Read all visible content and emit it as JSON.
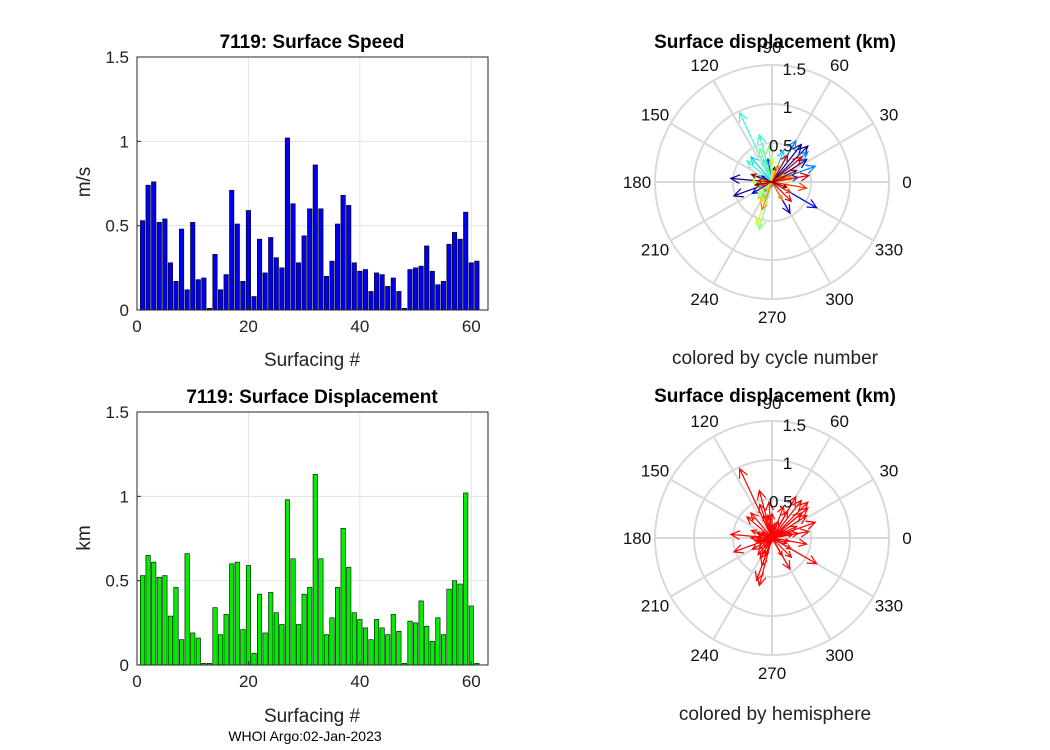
{
  "figure": {
    "footer": "WHOI Argo:02-Jan-2023"
  },
  "chart_data": [
    {
      "type": "bar",
      "id": "speed",
      "title": "7119: Surface Speed",
      "xlabel": "Surfacing #",
      "ylabel": "m/s",
      "xlim": [
        0,
        63
      ],
      "ylim": [
        0,
        1.5
      ],
      "xticks": [
        0,
        20,
        40,
        60
      ],
      "yticks": [
        0,
        0.5,
        1,
        1.5
      ],
      "xtick_labels": [
        "0",
        "20",
        "40",
        "60"
      ],
      "ytick_labels": [
        "0",
        "0.5",
        "1",
        "1.5"
      ],
      "grid": true,
      "bar_color": "#0000ee",
      "x": [
        1,
        2,
        3,
        4,
        5,
        6,
        7,
        8,
        9,
        10,
        11,
        12,
        13,
        14,
        15,
        16,
        17,
        18,
        19,
        20,
        21,
        22,
        23,
        24,
        25,
        26,
        27,
        28,
        29,
        30,
        31,
        32,
        33,
        34,
        35,
        36,
        37,
        38,
        39,
        40,
        41,
        42,
        43,
        44,
        45,
        46,
        47,
        48,
        49,
        50,
        51,
        52,
        53,
        54,
        55,
        56,
        57,
        58,
        59,
        60,
        61
      ],
      "values": [
        0.53,
        0.74,
        0.76,
        0.52,
        0.54,
        0.28,
        0.17,
        0.48,
        0.12,
        0.52,
        0.18,
        0.19,
        0.01,
        0.33,
        0.12,
        0.21,
        0.71,
        0.51,
        0.17,
        0.59,
        0.08,
        0.42,
        0.22,
        0.43,
        0.31,
        0.25,
        1.02,
        0.63,
        0.28,
        0.44,
        0.6,
        0.86,
        0.6,
        0.2,
        0.29,
        0.51,
        0.68,
        0.62,
        0.28,
        0.23,
        0.24,
        0.11,
        0.22,
        0.21,
        0.14,
        0.19,
        0.11,
        0.01,
        0.24,
        0.25,
        0.26,
        0.38,
        0.23,
        0.15,
        0.17,
        0.39,
        0.46,
        0.42,
        0.58,
        0.28,
        0.29
      ]
    },
    {
      "type": "bar",
      "id": "displacement",
      "title": "7119: Surface Displacement",
      "xlabel": "Surfacing #",
      "ylabel": "km",
      "xlim": [
        0,
        63
      ],
      "ylim": [
        0,
        1.5
      ],
      "xticks": [
        0,
        20,
        40,
        60
      ],
      "yticks": [
        0,
        0.5,
        1,
        1.5
      ],
      "xtick_labels": [
        "0",
        "20",
        "40",
        "60"
      ],
      "ytick_labels": [
        "0",
        "0.5",
        "1",
        "1.5"
      ],
      "grid": true,
      "bar_color": "#00ee00",
      "x": [
        1,
        2,
        3,
        4,
        5,
        6,
        7,
        8,
        9,
        10,
        11,
        12,
        13,
        14,
        15,
        16,
        17,
        18,
        19,
        20,
        21,
        22,
        23,
        24,
        25,
        26,
        27,
        28,
        29,
        30,
        31,
        32,
        33,
        34,
        35,
        36,
        37,
        38,
        39,
        40,
        41,
        42,
        43,
        44,
        45,
        46,
        47,
        48,
        49,
        50,
        51,
        52,
        53,
        54,
        55,
        56,
        57,
        58,
        59,
        60,
        61
      ],
      "values": [
        0.53,
        0.65,
        0.61,
        0.52,
        0.53,
        0.29,
        0.46,
        0.15,
        0.66,
        0.19,
        0.16,
        0.01,
        0.01,
        0.34,
        0.18,
        0.3,
        0.6,
        0.61,
        0.21,
        0.59,
        0.07,
        0.42,
        0.19,
        0.43,
        0.31,
        0.24,
        0.98,
        0.63,
        0.24,
        0.42,
        0.46,
        1.13,
        0.63,
        0.18,
        0.28,
        0.46,
        0.81,
        0.58,
        0.31,
        0.27,
        0.22,
        0.15,
        0.27,
        0.22,
        0.18,
        0.3,
        0.2,
        0.01,
        0.26,
        0.25,
        0.38,
        0.23,
        0.14,
        0.28,
        0.18,
        0.45,
        0.5,
        0.48,
        1.02,
        0.35,
        0.01
      ]
    },
    {
      "type": "polar-quiver",
      "id": "polar-cycle",
      "title": "Surface displacement (km)",
      "caption": "colored by cycle number",
      "rlim": [
        0,
        1.5
      ],
      "rticks": [
        0.5,
        1,
        1.5
      ],
      "rtick_labels": [
        "0.5",
        "1",
        "1.5"
      ],
      "theta_ticks": [
        0,
        30,
        60,
        90,
        120,
        150,
        180,
        210,
        240,
        270,
        300,
        330
      ],
      "theta_tick_labels": [
        "0",
        "30",
        "60",
        "90",
        "120",
        "150",
        "180",
        "210",
        "240",
        "270",
        "300",
        "330"
      ],
      "color_by": "cycle",
      "colors": [
        "#00008f",
        "#0000df",
        "#0030ff",
        "#0080ff",
        "#00d0ff",
        "#30ffcf",
        "#80ff80",
        "#cfff30",
        "#ffd000",
        "#ff8000",
        "#ff3000",
        "#df0000",
        "#8f0000"
      ],
      "vectors_deg_km": [
        [
          33,
          0.53
        ],
        [
          45,
          0.65
        ],
        [
          52,
          0.61
        ],
        [
          200,
          0.52
        ],
        [
          175,
          0.53
        ],
        [
          210,
          0.29
        ],
        [
          300,
          0.46
        ],
        [
          150,
          0.15
        ],
        [
          330,
          0.66
        ],
        [
          80,
          0.19
        ],
        [
          230,
          0.16
        ],
        [
          10,
          0.34
        ],
        [
          190,
          0.18
        ],
        [
          100,
          0.3
        ],
        [
          40,
          0.6
        ],
        [
          60,
          0.61
        ],
        [
          160,
          0.21
        ],
        [
          20,
          0.59
        ],
        [
          260,
          0.07
        ],
        [
          130,
          0.42
        ],
        [
          200,
          0.19
        ],
        [
          70,
          0.43
        ],
        [
          110,
          0.31
        ],
        [
          240,
          0.24
        ],
        [
          115,
          0.98
        ],
        [
          105,
          0.63
        ],
        [
          250,
          0.24
        ],
        [
          140,
          0.42
        ],
        [
          95,
          0.46
        ],
        [
          255,
          0.63
        ],
        [
          165,
          0.18
        ],
        [
          230,
          0.28
        ],
        [
          110,
          0.46
        ],
        [
          250,
          0.58
        ],
        [
          90,
          0.31
        ],
        [
          180,
          0.27
        ],
        [
          220,
          0.22
        ],
        [
          80,
          0.15
        ],
        [
          10,
          0.27
        ],
        [
          350,
          0.22
        ],
        [
          30,
          0.18
        ],
        [
          240,
          0.3
        ],
        [
          195,
          0.2
        ],
        [
          300,
          0.26
        ],
        [
          15,
          0.25
        ],
        [
          250,
          0.38
        ],
        [
          70,
          0.23
        ],
        [
          200,
          0.14
        ],
        [
          330,
          0.28
        ],
        [
          20,
          0.18
        ],
        [
          350,
          0.45
        ],
        [
          40,
          0.5
        ],
        [
          10,
          0.48
        ],
        [
          315,
          0.35
        ],
        [
          175,
          0.18
        ],
        [
          60,
          0.4
        ],
        [
          25,
          0.35
        ],
        [
          190,
          0.22
        ],
        [
          340,
          0.2
        ],
        [
          160,
          0.28
        ]
      ]
    },
    {
      "type": "polar-quiver",
      "id": "polar-hemisphere",
      "title": "Surface displacement (km)",
      "caption": "colored by hemisphere",
      "rlim": [
        0,
        1.5
      ],
      "rticks": [
        0.5,
        1,
        1.5
      ],
      "rtick_labels": [
        "0.5",
        "1",
        "1.5"
      ],
      "theta_ticks": [
        0,
        30,
        60,
        90,
        120,
        150,
        180,
        210,
        240,
        270,
        300,
        330
      ],
      "theta_tick_labels": [
        "0",
        "30",
        "60",
        "90",
        "120",
        "150",
        "180",
        "210",
        "240",
        "270",
        "300",
        "330"
      ],
      "color_by": "hemisphere",
      "colors": [
        "#ff0000"
      ],
      "vectors_deg_km": [
        [
          33,
          0.53
        ],
        [
          45,
          0.65
        ],
        [
          52,
          0.61
        ],
        [
          200,
          0.52
        ],
        [
          175,
          0.53
        ],
        [
          210,
          0.29
        ],
        [
          300,
          0.46
        ],
        [
          150,
          0.15
        ],
        [
          330,
          0.66
        ],
        [
          80,
          0.19
        ],
        [
          230,
          0.16
        ],
        [
          10,
          0.34
        ],
        [
          190,
          0.18
        ],
        [
          100,
          0.3
        ],
        [
          40,
          0.6
        ],
        [
          60,
          0.61
        ],
        [
          160,
          0.21
        ],
        [
          20,
          0.59
        ],
        [
          260,
          0.07
        ],
        [
          130,
          0.42
        ],
        [
          200,
          0.19
        ],
        [
          70,
          0.43
        ],
        [
          110,
          0.31
        ],
        [
          240,
          0.24
        ],
        [
          115,
          0.98
        ],
        [
          105,
          0.63
        ],
        [
          250,
          0.24
        ],
        [
          140,
          0.42
        ],
        [
          95,
          0.46
        ],
        [
          255,
          0.63
        ],
        [
          165,
          0.18
        ],
        [
          230,
          0.28
        ],
        [
          110,
          0.46
        ],
        [
          250,
          0.58
        ],
        [
          90,
          0.31
        ],
        [
          180,
          0.27
        ],
        [
          220,
          0.22
        ],
        [
          80,
          0.15
        ],
        [
          10,
          0.27
        ],
        [
          350,
          0.22
        ],
        [
          30,
          0.18
        ],
        [
          240,
          0.3
        ],
        [
          195,
          0.2
        ],
        [
          300,
          0.26
        ],
        [
          15,
          0.25
        ],
        [
          250,
          0.38
        ],
        [
          70,
          0.23
        ],
        [
          200,
          0.14
        ],
        [
          330,
          0.28
        ],
        [
          20,
          0.18
        ],
        [
          350,
          0.45
        ],
        [
          40,
          0.5
        ],
        [
          10,
          0.48
        ],
        [
          315,
          0.35
        ],
        [
          175,
          0.18
        ],
        [
          60,
          0.4
        ],
        [
          25,
          0.35
        ],
        [
          190,
          0.22
        ],
        [
          340,
          0.2
        ],
        [
          160,
          0.28
        ]
      ]
    }
  ]
}
